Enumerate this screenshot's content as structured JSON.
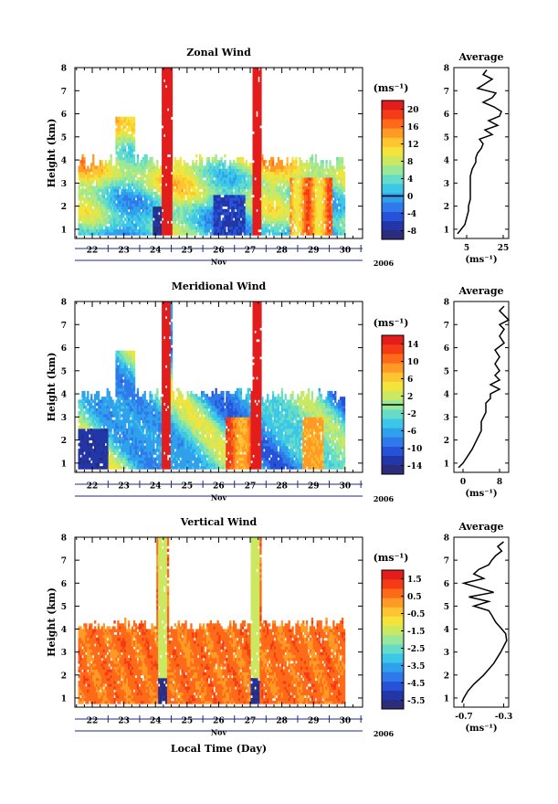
{
  "chart_data": [
    {
      "type": "heatmap",
      "title": "Zonal Wind",
      "ylabel": "Height (km)",
      "xlabel": "",
      "x_ticks": [
        "22",
        "23",
        "24",
        "25",
        "26",
        "27",
        "28",
        "29",
        "30"
      ],
      "x_month": "Nov",
      "year": "2006",
      "y_ticks": [
        "1",
        "2",
        "3",
        "4",
        "5",
        "6",
        "7",
        "8"
      ],
      "ylim": [
        0.6,
        8
      ],
      "colorbar": {
        "unit": "(ms⁻¹)",
        "ticks": [
          "20",
          "16",
          "12",
          "8",
          "4",
          "0",
          "-4",
          "-8"
        ],
        "range": [
          -10,
          22
        ],
        "marker": 0
      },
      "profile": {
        "title": "Average",
        "x_ticks": [
          "5",
          "25"
        ],
        "xlim": [
          -2,
          28
        ],
        "xlabel": "(ms⁻¹)",
        "height": [
          0.8,
          1.0,
          1.2,
          1.5,
          1.8,
          2.0,
          2.3,
          2.6,
          3.0,
          3.3,
          3.6,
          3.9,
          4.1,
          4.3,
          4.5,
          4.7,
          4.9,
          5.1,
          5.3,
          5.5,
          5.7,
          5.9,
          6.1,
          6.3,
          6.5,
          6.7,
          6.9,
          7.1,
          7.3,
          7.5,
          7.7,
          7.9
        ],
        "values": [
          0,
          2,
          4,
          5,
          6,
          6,
          7,
          7,
          7,
          7,
          8,
          10,
          10,
          11,
          13,
          14,
          12,
          19,
          15,
          22,
          17,
          23,
          24,
          20,
          14,
          19,
          21,
          11,
          15,
          19,
          14,
          16
        ]
      }
    },
    {
      "type": "heatmap",
      "title": "Meridional Wind",
      "ylabel": "Height (km)",
      "xlabel": "",
      "x_ticks": [
        "22",
        "23",
        "24",
        "25",
        "26",
        "27",
        "28",
        "29",
        "30"
      ],
      "x_month": "Nov",
      "year": "2006",
      "y_ticks": [
        "1",
        "2",
        "3",
        "4",
        "5",
        "6",
        "7",
        "8"
      ],
      "ylim": [
        0.6,
        8
      ],
      "colorbar": {
        "unit": "(ms⁻¹)",
        "ticks": [
          "14",
          "10",
          "6",
          "2",
          "-2",
          "-6",
          "-10",
          "-14"
        ],
        "range": [
          -16,
          16
        ],
        "marker": 0
      },
      "profile": {
        "title": "Average",
        "x_ticks": [
          "0",
          "8"
        ],
        "xlim": [
          -2,
          10
        ],
        "xlabel": "(ms⁻¹)",
        "height": [
          0.8,
          1.0,
          1.3,
          1.6,
          2.0,
          2.4,
          2.8,
          3.2,
          3.6,
          3.8,
          4.0,
          4.2,
          4.4,
          4.6,
          4.8,
          5.0,
          5.3,
          5.6,
          5.9,
          6.2,
          6.5,
          6.8,
          7.0,
          7.2,
          7.4,
          7.6,
          7.8
        ],
        "values": [
          -1,
          0,
          1,
          2,
          3,
          4,
          4,
          5,
          5,
          6,
          6,
          8,
          6,
          8,
          7,
          8,
          7,
          8,
          7,
          9,
          8,
          9,
          8,
          10,
          9,
          8,
          9
        ]
      }
    },
    {
      "type": "heatmap",
      "title": "Vertical Wind",
      "ylabel": "Height (km)",
      "xlabel": "Local Time (Day)",
      "x_ticks": [
        "22",
        "23",
        "24",
        "25",
        "26",
        "27",
        "28",
        "29",
        "30"
      ],
      "x_month": "Nov",
      "year": "2006",
      "y_ticks": [
        "1",
        "2",
        "3",
        "4",
        "5",
        "6",
        "7",
        "8"
      ],
      "ylim": [
        0.6,
        8
      ],
      "colorbar": {
        "unit": "(ms⁻¹)",
        "ticks": [
          "1.5",
          "0.5",
          "-0.5",
          "-1.5",
          "-2.5",
          "-3.5",
          "-4.5",
          "-5.5"
        ],
        "range": [
          -6,
          2
        ]
      },
      "profile": {
        "title": "Average",
        "x_ticks": [
          "-0.7",
          "-0.3"
        ],
        "xlim": [
          -0.8,
          -0.25
        ],
        "xlabel": "(ms⁻¹)",
        "height": [
          0.8,
          1.0,
          1.3,
          1.6,
          2.0,
          2.5,
          3.0,
          3.5,
          3.8,
          4.0,
          4.3,
          4.6,
          4.8,
          5.0,
          5.2,
          5.4,
          5.6,
          5.8,
          6.0,
          6.2,
          6.4,
          6.6,
          6.8,
          7.0,
          7.2,
          7.4,
          7.6,
          7.8
        ],
        "values": [
          -0.72,
          -0.7,
          -0.66,
          -0.6,
          -0.5,
          -0.4,
          -0.33,
          -0.27,
          -0.28,
          -0.32,
          -0.38,
          -0.42,
          -0.45,
          -0.6,
          -0.45,
          -0.65,
          -0.4,
          -0.55,
          -0.7,
          -0.5,
          -0.6,
          -0.55,
          -0.45,
          -0.42,
          -0.38,
          -0.32,
          -0.36,
          -0.3
        ]
      }
    }
  ]
}
